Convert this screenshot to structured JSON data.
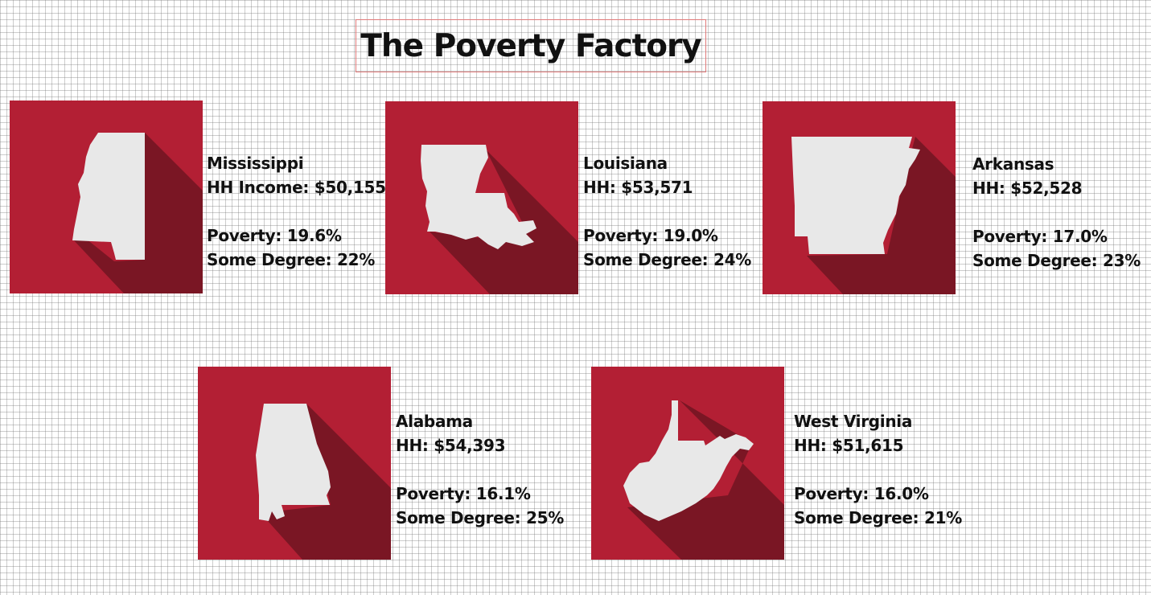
{
  "title": "The Poverty Factory",
  "colors": {
    "card": "#b31f34",
    "shadow": "#7a1624",
    "shape": "#e8e8e8",
    "title_border": "#e07a7a"
  },
  "states": [
    {
      "name": "Mississippi",
      "income": "HH Income: $50,155",
      "poverty": "Poverty: 19.6%",
      "degree": "Some Degree: 22%",
      "icon": "mississippi-silhouette"
    },
    {
      "name": "Louisiana",
      "income": "HH: $53,571",
      "poverty": "Poverty: 19.0%",
      "degree": "Some Degree: 24%",
      "icon": "louisiana-silhouette"
    },
    {
      "name": "Arkansas",
      "income": "HH: $52,528",
      "poverty": "Poverty: 17.0%",
      "degree": "Some Degree: 23%",
      "icon": "arkansas-silhouette"
    },
    {
      "name": "Alabama",
      "income": "HH: $54,393",
      "poverty": "Poverty: 16.1%",
      "degree": "Some Degree: 25%",
      "icon": "alabama-silhouette"
    },
    {
      "name": "West Virginia",
      "income": "HH: $51,615",
      "poverty": "Poverty: 16.0%",
      "degree": "Some Degree: 21%",
      "icon": "west-virginia-silhouette"
    }
  ]
}
